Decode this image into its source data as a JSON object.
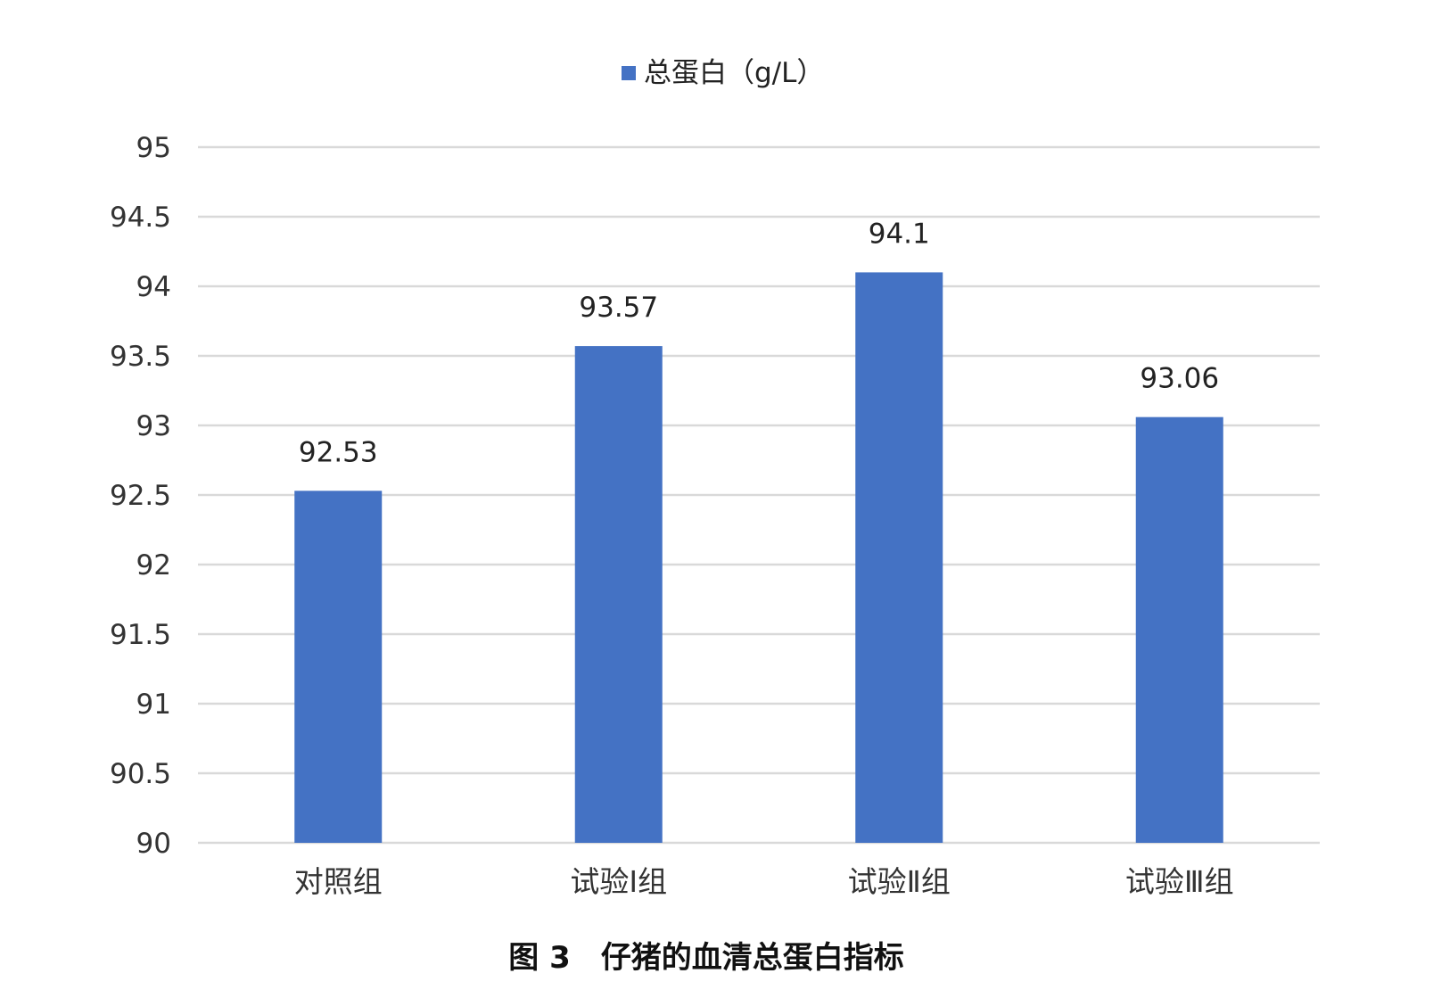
{
  "chart_data": {
    "type": "bar",
    "categories": [
      "对照组",
      "试验Ⅰ组",
      "试验Ⅱ组",
      "试验Ⅲ组"
    ],
    "series": [
      {
        "name": "总蛋白（g/L）",
        "values": [
          92.53,
          93.57,
          94.1,
          93.06
        ],
        "color": "#4472C4"
      }
    ],
    "data_labels": [
      "92.53",
      "93.57",
      "94.1",
      "93.06"
    ],
    "yticks": [
      "90",
      "90.5",
      "91",
      "91.5",
      "92",
      "92.5",
      "93",
      "93.5",
      "94",
      "94.5",
      "95"
    ],
    "ylim": [
      90,
      95
    ],
    "grid": true,
    "legend": "top-center",
    "caption": "图 3　仔猪的血清总蛋白指标"
  },
  "colors": {
    "bar": "#4472C4",
    "grid": "#D9D9D9"
  }
}
